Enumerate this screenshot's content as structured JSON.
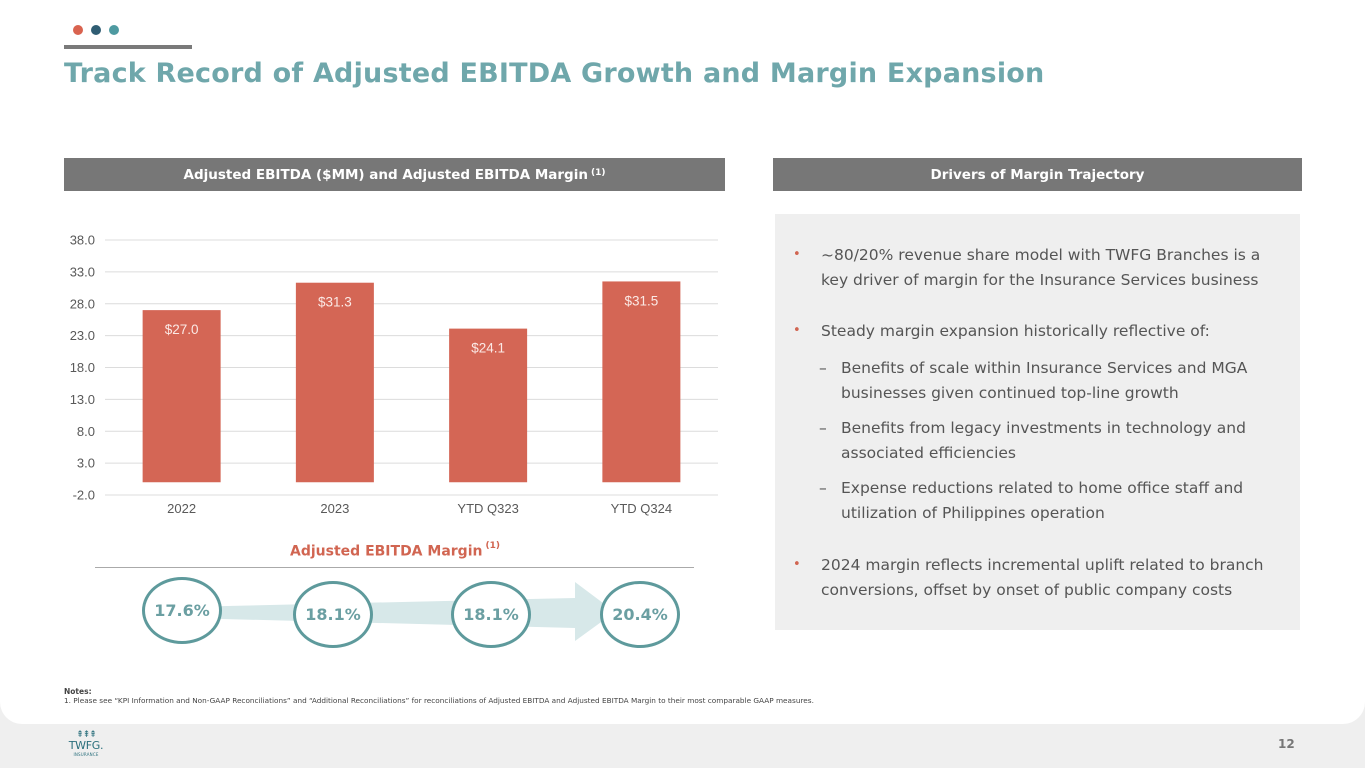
{
  "header": {
    "dots": [
      {
        "name": "coral",
        "color": "#d9634f"
      },
      {
        "name": "navy",
        "color": "#2f5d73"
      },
      {
        "name": "teal",
        "color": "#4e9aa1"
      }
    ],
    "title": "Track Record of Adjusted EBITDA Growth and Margin Expansion"
  },
  "left_section": {
    "title": "Adjusted EBITDA ($MM) and Adjusted EBITDA Margin",
    "footnote_ref": "(1)"
  },
  "right_section": {
    "title": "Drivers of Margin Trajectory"
  },
  "chart_data": {
    "type": "bar",
    "title": "Adjusted EBITDA ($MM)",
    "xlabel": "",
    "ylabel": "",
    "categories": [
      "2022",
      "2023",
      "YTD Q323",
      "YTD Q324"
    ],
    "values": [
      27.0,
      31.3,
      24.1,
      31.5
    ],
    "data_labels": [
      "$27.0",
      "$31.3",
      "$24.1",
      "$31.5"
    ],
    "ylim": [
      -2.0,
      38.0
    ],
    "yticks": [
      -2.0,
      3.0,
      8.0,
      13.0,
      18.0,
      23.0,
      28.0,
      33.0,
      38.0
    ],
    "ytick_labels": [
      "-2.0",
      "3.0",
      "8.0",
      "13.0",
      "18.0",
      "23.0",
      "28.0",
      "33.0",
      "38.0"
    ],
    "grid": true,
    "bar_color": "#d46655",
    "legend": "none"
  },
  "margin": {
    "title": "Adjusted EBITDA Margin",
    "footnote_ref": "(1)",
    "values": [
      "17.6%",
      "18.1%",
      "18.1%",
      "20.4%"
    ],
    "periods": [
      "2022",
      "2023",
      "YTD Q323",
      "YTD Q324"
    ]
  },
  "drivers": {
    "bullets": [
      {
        "text": "~80/20% revenue share model with TWFG Branches is a key driver of margin for the Insurance Services business",
        "subs": []
      },
      {
        "text": "Steady margin expansion historically reflective of:",
        "subs": [
          "Benefits of scale within Insurance Services and MGA businesses given continued top-line growth",
          "Benefits from legacy investments in technology and associated efficiencies",
          "Expense reductions related to home office staff and utilization of Philippines operation"
        ]
      },
      {
        "text": "2024 margin reflects incremental uplift related to branch conversions, offset by onset of public company costs",
        "subs": []
      }
    ],
    "bullet_marker": "•",
    "sub_marker": "–"
  },
  "notes": {
    "heading": "Notes:",
    "items": [
      "1. Please see “KPI Information and Non-GAAP Reconciliations” and “Additional Reconciliations” for reconciliations of Adjusted EBITDA and Adjusted EBITDA Margin to their most comparable GAAP measures."
    ]
  },
  "footer": {
    "logo_trees": "⇞⇞⇞",
    "logo_word": "TWFG.",
    "logo_sub": "INSURANCE",
    "page_number": "12"
  }
}
